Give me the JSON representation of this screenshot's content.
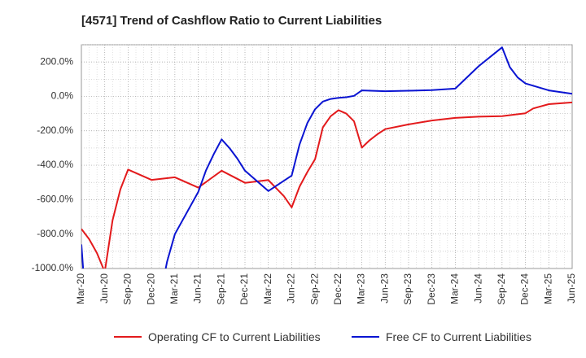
{
  "chart_data": {
    "type": "line",
    "title": "[4571]  Trend of Cashflow Ratio to Current Liabilities",
    "xlabel": "",
    "ylabel": "",
    "x_ticks": [
      "Mar-20",
      "Jun-20",
      "Sep-20",
      "Dec-20",
      "Mar-21",
      "Jun-21",
      "Sep-21",
      "Dec-21",
      "Mar-22",
      "Jun-22",
      "Sep-22",
      "Dec-22",
      "Mar-23",
      "Jun-23",
      "Sep-23",
      "Dec-23",
      "Mar-24",
      "Jun-24",
      "Sep-24",
      "Dec-24",
      "Mar-25",
      "Jun-25"
    ],
    "y_ticks": [
      200,
      0,
      -200,
      -400,
      -600,
      -800,
      -1000
    ],
    "y_tick_labels": [
      "200.0%",
      "0.0%",
      "-200.0%",
      "-400.0%",
      "-600.0%",
      "-800.0%",
      "-1000.0%"
    ],
    "ylim": [
      -1000,
      300
    ],
    "xlim_months": [
      0,
      63
    ],
    "grid": true,
    "legend_position": "bottom",
    "series": [
      {
        "name": "Operating CF to Current Liabilities",
        "color": "#e31a1c",
        "points": [
          [
            0,
            -770
          ],
          [
            1,
            -830
          ],
          [
            2,
            -910
          ],
          [
            3,
            -1020
          ],
          [
            4,
            -720
          ],
          [
            5,
            -540
          ],
          [
            6,
            -425
          ],
          [
            9,
            -485
          ],
          [
            12,
            -470
          ],
          [
            15,
            -530
          ],
          [
            18,
            -432
          ],
          [
            21,
            -502
          ],
          [
            24,
            -486
          ],
          [
            26,
            -580
          ],
          [
            27,
            -645
          ],
          [
            28,
            -525
          ],
          [
            29,
            -440
          ],
          [
            30,
            -365
          ],
          [
            31,
            -180
          ],
          [
            32,
            -115
          ],
          [
            33,
            -80
          ],
          [
            34,
            -100
          ],
          [
            35,
            -145
          ],
          [
            36,
            -298
          ],
          [
            37,
            -255
          ],
          [
            38,
            -220
          ],
          [
            39,
            -190
          ],
          [
            42,
            -163
          ],
          [
            45,
            -140
          ],
          [
            48,
            -125
          ],
          [
            51,
            -118
          ],
          [
            54,
            -115
          ],
          [
            57,
            -98
          ],
          [
            58,
            -70
          ],
          [
            60,
            -45
          ],
          [
            63,
            -35
          ]
        ]
      },
      {
        "name": "Free CF to Current Liabilities",
        "color": "#0a14d2",
        "points": [
          [
            0,
            -860
          ],
          [
            0.3,
            -1050
          ],
          [
            10.6,
            -1050
          ],
          [
            11,
            -960
          ],
          [
            12,
            -800
          ],
          [
            15,
            -555
          ],
          [
            16,
            -430
          ],
          [
            17,
            -335
          ],
          [
            18,
            -250
          ],
          [
            19,
            -300
          ],
          [
            20,
            -360
          ],
          [
            21,
            -432
          ],
          [
            24,
            -550
          ],
          [
            27,
            -460
          ],
          [
            28,
            -280
          ],
          [
            29,
            -155
          ],
          [
            30,
            -75
          ],
          [
            31,
            -30
          ],
          [
            32,
            -15
          ],
          [
            33,
            -8
          ],
          [
            34,
            -5
          ],
          [
            35,
            3
          ],
          [
            36,
            35
          ],
          [
            39,
            30
          ],
          [
            42,
            33
          ],
          [
            45,
            36
          ],
          [
            48,
            45
          ],
          [
            51,
            175
          ],
          [
            54,
            285
          ],
          [
            55,
            170
          ],
          [
            56,
            110
          ],
          [
            57,
            75
          ],
          [
            60,
            35
          ],
          [
            63,
            15
          ]
        ]
      }
    ]
  }
}
